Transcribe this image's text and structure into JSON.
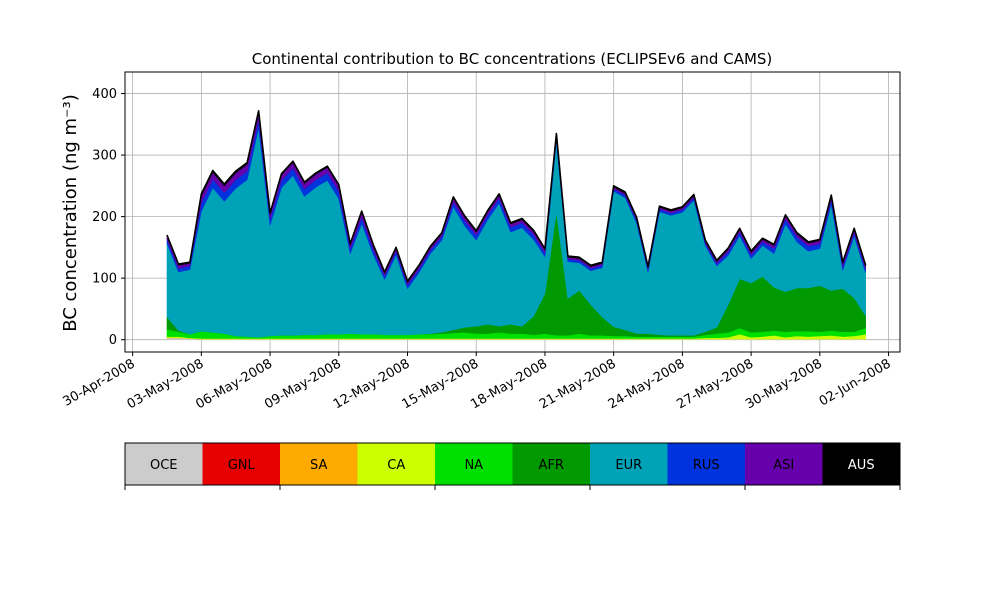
{
  "chart_data": [
    {
      "type": "area",
      "stacked": true,
      "title": "Continental contribution to BC concentrations (ECLIPSEv6 and CAMS)",
      "ylabel": "BC concentration (ng m⁻³)",
      "xlabel": "",
      "x_tick_labels": [
        "30-Apr-2008",
        "03-May-2008",
        "06-May-2008",
        "09-May-2008",
        "12-May-2008",
        "15-May-2008",
        "18-May-2008",
        "21-May-2008",
        "24-May-2008",
        "27-May-2008",
        "30-May-2008",
        "02-Jun-2008"
      ],
      "x_tick_dates": [
        "2008-04-30",
        "2008-05-03",
        "2008-05-06",
        "2008-05-09",
        "2008-05-12",
        "2008-05-15",
        "2008-05-18",
        "2008-05-21",
        "2008-05-24",
        "2008-05-27",
        "2008-05-30",
        "2008-06-02"
      ],
      "xlim": [
        "2008-04-29T16:00",
        "2008-06-02T12:00"
      ],
      "ylim": [
        -20,
        435
      ],
      "y_ticks": [
        0,
        100,
        200,
        300,
        400
      ],
      "grid": true,
      "x": [
        "2008-05-01T12:00",
        "2008-05-02T00:00",
        "2008-05-02T12:00",
        "2008-05-03T00:00",
        "2008-05-03T12:00",
        "2008-05-04T00:00",
        "2008-05-04T12:00",
        "2008-05-05T00:00",
        "2008-05-05T12:00",
        "2008-05-06T00:00",
        "2008-05-06T12:00",
        "2008-05-07T00:00",
        "2008-05-07T12:00",
        "2008-05-08T00:00",
        "2008-05-08T12:00",
        "2008-05-09T00:00",
        "2008-05-09T12:00",
        "2008-05-10T00:00",
        "2008-05-10T12:00",
        "2008-05-11T00:00",
        "2008-05-11T12:00",
        "2008-05-12T00:00",
        "2008-05-12T12:00",
        "2008-05-13T00:00",
        "2008-05-13T12:00",
        "2008-05-14T00:00",
        "2008-05-14T12:00",
        "2008-05-15T00:00",
        "2008-05-15T12:00",
        "2008-05-16T00:00",
        "2008-05-16T12:00",
        "2008-05-17T00:00",
        "2008-05-17T12:00",
        "2008-05-18T00:00",
        "2008-05-18T12:00",
        "2008-05-19T00:00",
        "2008-05-19T12:00",
        "2008-05-20T00:00",
        "2008-05-20T12:00",
        "2008-05-21T00:00",
        "2008-05-21T12:00",
        "2008-05-22T00:00",
        "2008-05-22T12:00",
        "2008-05-23T00:00",
        "2008-05-23T12:00",
        "2008-05-24T00:00",
        "2008-05-24T12:00",
        "2008-05-25T00:00",
        "2008-05-25T12:00",
        "2008-05-26T00:00",
        "2008-05-26T12:00",
        "2008-05-27T00:00",
        "2008-05-27T12:00",
        "2008-05-28T00:00",
        "2008-05-28T12:00",
        "2008-05-29T00:00",
        "2008-05-29T12:00",
        "2008-05-30T00:00",
        "2008-05-30T12:00",
        "2008-05-31T00:00",
        "2008-05-31T12:00",
        "2008-06-01T00:00"
      ],
      "series": [
        {
          "name": "OCE",
          "color": "#cccccc",
          "values": [
            3,
            3,
            2,
            1,
            1,
            1,
            1,
            1,
            1,
            1,
            1,
            1,
            1,
            1,
            1,
            1,
            1,
            1,
            1,
            1,
            1,
            1,
            1,
            1,
            1,
            1,
            1,
            1,
            1,
            1,
            1,
            1,
            1,
            1,
            1,
            1,
            1,
            1,
            1,
            1,
            1,
            1,
            1,
            1,
            1,
            1,
            1,
            1,
            1,
            1,
            1,
            1,
            1,
            1,
            1,
            1,
            1,
            1,
            1,
            1,
            1,
            1
          ]
        },
        {
          "name": "GNL",
          "color": "#e60000",
          "values": [
            0,
            0,
            0,
            0,
            0,
            0,
            0,
            0,
            0,
            0,
            0,
            0,
            0,
            0,
            0,
            0,
            0,
            0,
            0,
            0,
            0,
            0,
            0,
            0,
            0,
            0,
            0,
            0,
            0,
            0,
            0,
            0,
            0,
            0,
            0,
            0,
            0,
            0,
            0,
            0,
            0,
            0,
            0,
            0,
            0,
            0,
            0,
            0,
            0,
            0,
            0,
            0,
            0,
            0,
            0,
            0,
            0,
            0,
            0,
            0,
            0,
            0
          ]
        },
        {
          "name": "SA",
          "color": "#ffaa00",
          "values": [
            0,
            0,
            0,
            0,
            0,
            0,
            0,
            0,
            0,
            0,
            0,
            0,
            0,
            0,
            0,
            0,
            0,
            0,
            0,
            0,
            0,
            0,
            0,
            0,
            0,
            0,
            0,
            0,
            0,
            0,
            0,
            0,
            0,
            0,
            0,
            0,
            0,
            0,
            0,
            0,
            0,
            0,
            0,
            0,
            0,
            0,
            0,
            0,
            0,
            0,
            0,
            0,
            0,
            0,
            0,
            0,
            0,
            0,
            0,
            0,
            0,
            0
          ]
        },
        {
          "name": "CA",
          "color": "#ccff00",
          "values": [
            2,
            2,
            1,
            1,
            1,
            1,
            1,
            1,
            1,
            1,
            1,
            1,
            1,
            1,
            1,
            1,
            1,
            1,
            1,
            1,
            1,
            1,
            1,
            1,
            1,
            1,
            1,
            1,
            1,
            1,
            1,
            1,
            1,
            1,
            1,
            1,
            1,
            1,
            1,
            1,
            1,
            1,
            1,
            1,
            1,
            1,
            1,
            2,
            2,
            3,
            8,
            3,
            4,
            6,
            3,
            5,
            4,
            5,
            6,
            4,
            5,
            8
          ]
        },
        {
          "name": "NA",
          "color": "#00e000",
          "values": [
            12,
            8,
            6,
            12,
            10,
            8,
            4,
            3,
            2,
            4,
            5,
            5,
            6,
            6,
            7,
            7,
            8,
            7,
            7,
            6,
            6,
            6,
            7,
            7,
            8,
            9,
            10,
            8,
            8,
            10,
            8,
            8,
            6,
            8,
            5,
            5,
            8,
            5,
            5,
            4,
            4,
            3,
            3,
            3,
            3,
            3,
            3,
            5,
            7,
            8,
            10,
            8,
            8,
            8,
            9,
            8,
            9,
            7,
            8,
            8,
            7,
            10
          ]
        },
        {
          "name": "AFR",
          "color": "#009900",
          "values": [
            20,
            2,
            0,
            0,
            0,
            0,
            0,
            0,
            0,
            0,
            0,
            0,
            0,
            0,
            0,
            0,
            0,
            0,
            0,
            0,
            0,
            0,
            0,
            1,
            2,
            5,
            8,
            12,
            15,
            10,
            15,
            12,
            30,
            65,
            200,
            60,
            70,
            50,
            30,
            15,
            10,
            5,
            5,
            3,
            2,
            2,
            2,
            5,
            10,
            45,
            80,
            80,
            90,
            70,
            65,
            70,
            70,
            75,
            65,
            70,
            55,
            20
          ]
        },
        {
          "name": "EUR",
          "color": "#00a2b8",
          "values": [
            120,
            95,
            105,
            195,
            235,
            215,
            240,
            255,
            340,
            180,
            240,
            260,
            225,
            240,
            250,
            220,
            130,
            180,
            130,
            90,
            130,
            75,
            100,
            130,
            150,
            200,
            165,
            140,
            170,
            200,
            150,
            160,
            125,
            60,
            115,
            60,
            45,
            55,
            80,
            220,
            215,
            180,
            100,
            200,
            195,
            200,
            220,
            140,
            100,
            80,
            70,
            40,
            50,
            55,
            110,
            75,
            60,
            60,
            140,
            30,
            100,
            70
          ]
        },
        {
          "name": "RUS",
          "color": "#0033dd",
          "values": [
            6,
            6,
            6,
            14,
            14,
            14,
            14,
            14,
            14,
            10,
            12,
            12,
            12,
            12,
            12,
            12,
            8,
            10,
            8,
            6,
            6,
            6,
            6,
            6,
            6,
            8,
            8,
            8,
            8,
            8,
            8,
            8,
            8,
            6,
            6,
            4,
            4,
            4,
            4,
            4,
            4,
            4,
            4,
            4,
            4,
            4,
            4,
            4,
            4,
            6,
            6,
            6,
            6,
            8,
            8,
            8,
            8,
            8,
            8,
            6,
            6,
            6
          ]
        },
        {
          "name": "ASI",
          "color": "#6600aa",
          "values": [
            5,
            5,
            4,
            11,
            11,
            11,
            11,
            11,
            11,
            8,
            9,
            9,
            9,
            9,
            9,
            9,
            6,
            8,
            6,
            4,
            4,
            4,
            4,
            4,
            4,
            6,
            6,
            5,
            5,
            5,
            5,
            5,
            5,
            5,
            5,
            3,
            3,
            3,
            3,
            3,
            3,
            3,
            3,
            3,
            3,
            3,
            3,
            3,
            3,
            4,
            4,
            4,
            4,
            5,
            5,
            5,
            5,
            5,
            5,
            5,
            5,
            4
          ]
        },
        {
          "name": "AUS",
          "color": "#000000",
          "values": [
            2,
            2,
            2,
            3,
            3,
            3,
            3,
            3,
            3,
            2,
            2,
            2,
            2,
            2,
            2,
            2,
            2,
            2,
            2,
            2,
            2,
            2,
            2,
            2,
            2,
            2,
            2,
            2,
            2,
            2,
            2,
            2,
            2,
            2,
            2,
            2,
            2,
            2,
            2,
            2,
            2,
            2,
            2,
            2,
            2,
            2,
            2,
            2,
            2,
            2,
            2,
            2,
            2,
            2,
            2,
            2,
            2,
            2,
            2,
            2,
            2,
            2
          ]
        }
      ]
    },
    {
      "type": "legend-colorbar",
      "entries": [
        {
          "label": "OCE",
          "color": "#cccccc",
          "text_color": "#000000"
        },
        {
          "label": "GNL",
          "color": "#e60000",
          "text_color": "#000000"
        },
        {
          "label": "SA",
          "color": "#ffaa00",
          "text_color": "#000000"
        },
        {
          "label": "CA",
          "color": "#ccff00",
          "text_color": "#000000"
        },
        {
          "label": "NA",
          "color": "#00e000",
          "text_color": "#000000"
        },
        {
          "label": "AFR",
          "color": "#009900",
          "text_color": "#000000"
        },
        {
          "label": "EUR",
          "color": "#00a2b8",
          "text_color": "#000000"
        },
        {
          "label": "RUS",
          "color": "#0033dd",
          "text_color": "#000000"
        },
        {
          "label": "ASI",
          "color": "#6600aa",
          "text_color": "#000000"
        },
        {
          "label": "AUS",
          "color": "#000000",
          "text_color": "#ffffff"
        }
      ]
    }
  ]
}
